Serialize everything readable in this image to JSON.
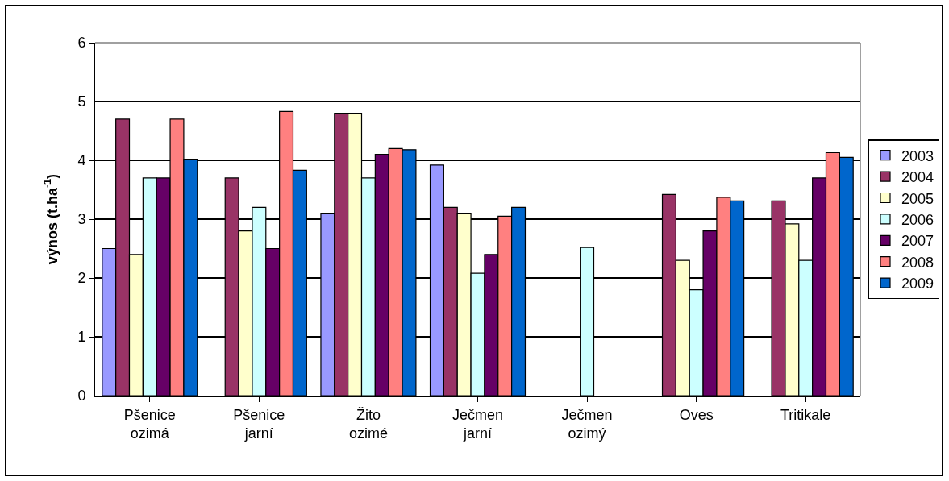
{
  "chart_data": {
    "type": "bar",
    "ylabel": "výnos (t.ha$^{-1}$)",
    "categories": [
      "Pšenice ozimá",
      "Pšenice jarní",
      "Žito ozimé",
      "Ječmen jarní",
      "Ječmen ozimý",
      "Oves",
      "Tritikale"
    ],
    "series": [
      {
        "name": "2003",
        "color": "#9999ff",
        "values": [
          2.5,
          null,
          3.1,
          3.92,
          null,
          null,
          null
        ]
      },
      {
        "name": "2004",
        "color": "#993366",
        "values": [
          4.7,
          3.7,
          4.8,
          3.2,
          null,
          3.42,
          3.31
        ]
      },
      {
        "name": "2005",
        "color": "#ffffcc",
        "values": [
          2.4,
          2.8,
          4.8,
          3.1,
          null,
          2.3,
          2.92
        ]
      },
      {
        "name": "2006",
        "color": "#ccffff",
        "values": [
          3.7,
          3.2,
          3.7,
          2.08,
          2.52,
          1.8,
          2.3
        ]
      },
      {
        "name": "2007",
        "color": "#660066",
        "values": [
          3.7,
          2.5,
          4.1,
          2.4,
          null,
          2.8,
          3.7
        ]
      },
      {
        "name": "2008",
        "color": "#ff8080",
        "values": [
          4.7,
          4.83,
          4.2,
          3.05,
          null,
          3.37,
          4.13
        ]
      },
      {
        "name": "2009",
        "color": "#0066cc",
        "values": [
          4.02,
          3.83,
          4.18,
          3.2,
          null,
          3.31,
          4.05
        ]
      }
    ],
    "ylim": [
      0,
      6
    ],
    "yticks": [
      0,
      1,
      2,
      3,
      4,
      5,
      6
    ],
    "grid": "y",
    "legend": "right"
  }
}
